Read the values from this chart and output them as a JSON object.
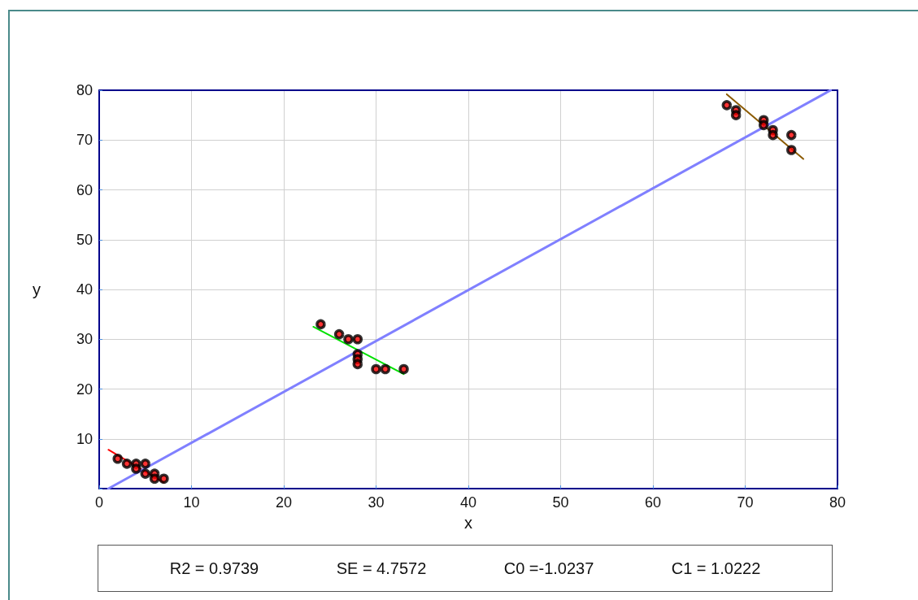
{
  "chart_data": {
    "type": "scatter",
    "xlabel": "x",
    "ylabel": "y",
    "xlim": [
      0,
      80
    ],
    "xticks": [
      0,
      10,
      20,
      30,
      40,
      50,
      60,
      70,
      80
    ],
    "ylim": [
      0,
      80
    ],
    "yticks": [
      {
        "value": 0,
        "label": null
      },
      10,
      20,
      30,
      40,
      50,
      60,
      70,
      80
    ],
    "grid": true,
    "marker": "circle",
    "series": [
      {
        "color": "#000000",
        "x": [
          2,
          3,
          4,
          4,
          5,
          5,
          6,
          6,
          7,
          24,
          26,
          27,
          28,
          28,
          28,
          28,
          30,
          31,
          33,
          68,
          69,
          69,
          72,
          72,
          73,
          73,
          75,
          75
        ],
        "values": [
          6,
          5,
          5,
          4,
          5,
          3,
          3,
          2,
          2,
          33,
          31,
          30,
          30,
          27,
          26,
          25,
          24,
          24,
          24,
          77,
          76,
          75,
          74,
          73,
          72,
          71,
          71,
          68
        ]
      },
      {
        "type": "line",
        "color": "#ff0000",
        "marker": "none",
        "x": [
          1,
          7
        ],
        "values": [
          7.8,
          1.2
        ]
      },
      {
        "type": "line",
        "color": "#00e000",
        "marker": "none",
        "x": [
          23.2,
          33
        ],
        "values": [
          32.5,
          23
        ]
      },
      {
        "type": "line",
        "color": "#8b5a00",
        "marker": "none",
        "x": [
          68,
          76.3
        ],
        "values": [
          79.2,
          66.2
        ]
      },
      {
        "type": "line",
        "color": "#8080ff",
        "marker": "none",
        "x": [
          1,
          79.25
        ],
        "values": [
          0,
          80
        ]
      }
    ],
    "annotations": [
      "R2 = 0.9739",
      "SE = 4.7572",
      "C0 =-1.0237",
      "C1 = 1.0222"
    ]
  }
}
